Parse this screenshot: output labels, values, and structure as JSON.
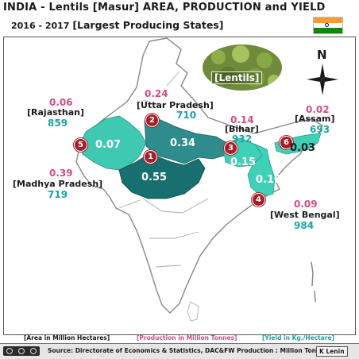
{
  "title": "INDIA - Lentils [Masur] AREA, PRODUCTION and  YIELD",
  "subtitle_years": "2016 - 2017",
  "subtitle_desc": "[Largest Producing States]",
  "photo_label": "[Lentils]",
  "compass_label": "N",
  "states": [
    {
      "rank": "1",
      "name": "[Madhya Pradesh]",
      "area": "0.39",
      "production": "0.55",
      "yield": "719"
    },
    {
      "rank": "2",
      "name": "[Uttar  Pradesh]",
      "area": "0.24",
      "production": "0.34",
      "yield": "710"
    },
    {
      "rank": "3",
      "name": "[Bihar]",
      "area": "0.14",
      "production": "0.15",
      "yield": "932"
    },
    {
      "rank": "4",
      "name": "[West Bengal]",
      "area": "0.09",
      "production": "0.10",
      "yield": "984"
    },
    {
      "rank": "5",
      "name": "[Rajasthan]",
      "area": "0.06",
      "production": "0.07",
      "yield": "859"
    },
    {
      "rank": "6",
      "name": "[Assam]",
      "area": "0.02",
      "production": "0.03",
      "yield": "693"
    }
  ],
  "legend": {
    "area": "[Area in Million Hectares]",
    "production": "[Production in Million Tonnes]",
    "yield": "[Yield in Kg./Hectare]"
  },
  "footer": {
    "source": "Source: Directorate of Economics & Statistics, DAC&FW  Production : Million Tonnes",
    "author": "K Lenin"
  },
  "colors": {
    "area_text": "#d64a86",
    "yield_text": "#1aa3a3",
    "madhya_pradesh": "#176f6f",
    "uttar_pradesh": "#2f8c8c",
    "rajasthan": "#3fc9b3",
    "bihar_wb_assam": "#3fd0b8",
    "badge": "#a3202b",
    "flag_saffron": "#ff9933",
    "flag_green": "#138808",
    "flag_chakra": "#000080"
  },
  "icons": [
    "creative-commons-icon",
    "compass-icon",
    "india-flag-icon"
  ]
}
